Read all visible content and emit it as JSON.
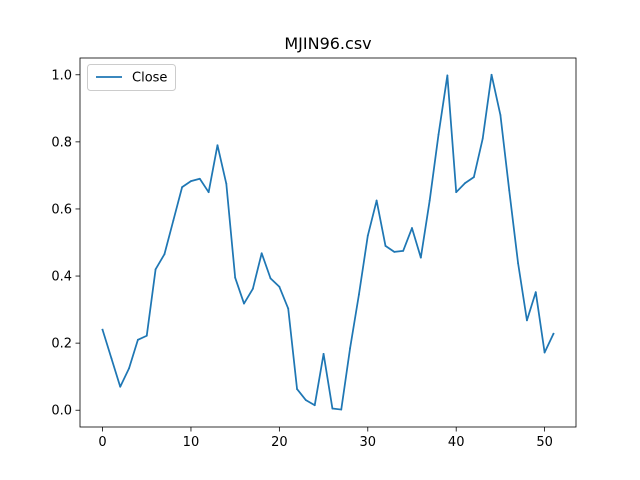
{
  "chart_data": {
    "type": "line",
    "title": "MJIN96.csv",
    "xlabel": "",
    "ylabel": "",
    "xlim": [
      -2.55,
      53.55
    ],
    "ylim": [
      -0.05,
      1.05
    ],
    "xticks": [
      0,
      10,
      20,
      30,
      40,
      50
    ],
    "yticks": [
      0.0,
      0.2,
      0.4,
      0.6,
      0.8,
      1.0
    ],
    "xtick_labels": [
      "0",
      "10",
      "20",
      "30",
      "40",
      "50"
    ],
    "ytick_labels": [
      "0.0",
      "0.2",
      "0.4",
      "0.6",
      "0.8",
      "1.0"
    ],
    "grid": false,
    "legend_placement": "upper-left",
    "series": [
      {
        "name": "Close",
        "color": "#1f77b4",
        "x": [
          0,
          1,
          2,
          3,
          4,
          5,
          6,
          7,
          8,
          9,
          10,
          11,
          12,
          13,
          14,
          15,
          16,
          17,
          18,
          19,
          20,
          21,
          22,
          23,
          24,
          25,
          26,
          27,
          28,
          29,
          30,
          31,
          32,
          33,
          34,
          35,
          36,
          37,
          38,
          39,
          40,
          41,
          42,
          43,
          44,
          45,
          46,
          47,
          48,
          49,
          50,
          51
        ],
        "y": [
          0.24,
          0.155,
          0.07,
          0.125,
          0.21,
          0.222,
          0.42,
          0.465,
          0.565,
          0.665,
          0.683,
          0.69,
          0.65,
          0.79,
          0.675,
          0.395,
          0.318,
          0.362,
          0.468,
          0.393,
          0.368,
          0.303,
          0.063,
          0.03,
          0.015,
          0.168,
          0.005,
          0.002,
          0.185,
          0.345,
          0.52,
          0.625,
          0.49,
          0.472,
          0.475,
          0.543,
          0.455,
          0.625,
          0.822,
          0.998,
          0.65,
          0.677,
          0.695,
          0.81,
          1.0,
          0.88,
          0.655,
          0.438,
          0.268,
          0.352,
          0.172,
          0.228
        ]
      }
    ]
  }
}
